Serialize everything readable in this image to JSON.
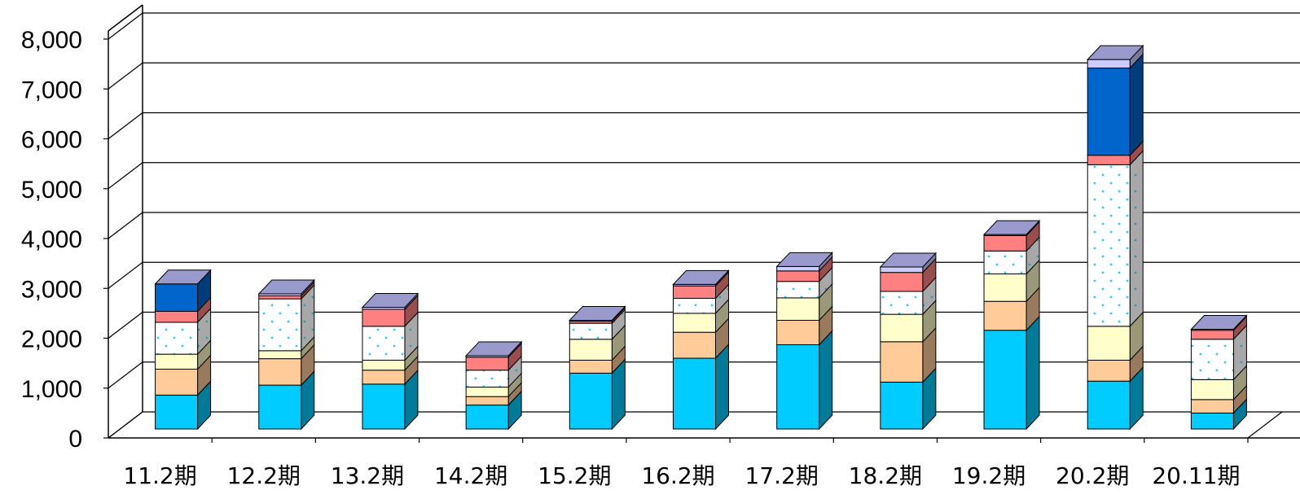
{
  "chart_data": {
    "type": "bar",
    "stacked": true,
    "three_d": true,
    "title": "",
    "xlabel": "",
    "ylabel": "",
    "ylim": [
      0,
      8000
    ],
    "y_ticks": [
      "0",
      "1,000",
      "2,000",
      "3,000",
      "4,000",
      "5,000",
      "6,000",
      "7,000",
      "8,000"
    ],
    "y_tick_values": [
      0,
      1000,
      2000,
      3000,
      4000,
      5000,
      6000,
      7000,
      8000
    ],
    "grid": true,
    "legend": "none",
    "categories": [
      "11.2期",
      "12.2期",
      "13.2期",
      "14.2期",
      "15.2期",
      "16.2期",
      "17.2期",
      "18.2期",
      "19.2期",
      "20.2期",
      "20.11期"
    ],
    "series": [
      {
        "values": [
          680,
          880,
          900,
          480,
          1120,
          1420,
          1690,
          940,
          1980,
          960,
          320
        ],
        "color": "#00CCFF",
        "pattern": "none"
      },
      {
        "values": [
          520,
          530,
          280,
          170,
          260,
          520,
          490,
          810,
          580,
          420,
          270
        ],
        "color": "#FFCC99",
        "pattern": "none"
      },
      {
        "values": [
          300,
          160,
          200,
          190,
          420,
          380,
          450,
          550,
          550,
          680,
          400
        ],
        "color": "#FFFFCC",
        "pattern": "none"
      },
      {
        "values": [
          640,
          1040,
          680,
          340,
          320,
          300,
          330,
          460,
          460,
          3240,
          810
        ],
        "color": "#FFFFFF",
        "pattern": "dots"
      },
      {
        "values": [
          220,
          60,
          340,
          260,
          40,
          250,
          210,
          380,
          310,
          190,
          180
        ],
        "color": "#FF8080",
        "pattern": "none"
      },
      {
        "values": [
          550,
          0,
          0,
          0,
          0,
          0,
          0,
          0,
          0,
          1750,
          0
        ],
        "color": "#0066CC",
        "pattern": "none"
      },
      {
        "values": [
          0,
          40,
          40,
          30,
          20,
          30,
          90,
          110,
          20,
          170,
          20
        ],
        "color": "#CCCCFF",
        "pattern": "none"
      }
    ]
  }
}
